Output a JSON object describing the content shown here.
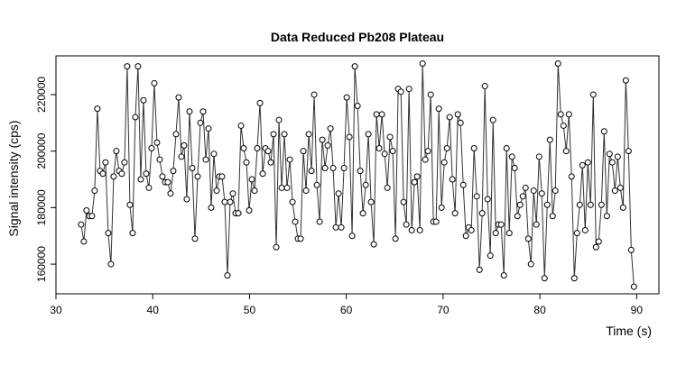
{
  "chart_data": {
    "type": "line",
    "title": "Data Reduced Pb208 Plateau",
    "x_label": "Time (s)",
    "y_label": "Signal intensity (cps)",
    "color": "#000000",
    "markers": true,
    "xlim": [
      30,
      92.3
    ],
    "ylim": [
      149500,
      233700
    ],
    "xticks": [
      30,
      40,
      50,
      60,
      70,
      80,
      90
    ],
    "yticks": [
      160000,
      180000,
      200000,
      220000
    ],
    "x": [
      32.6,
      32.88,
      33.16,
      33.44,
      33.72,
      34,
      34.28,
      34.56,
      34.84,
      35.12,
      35.4,
      35.68,
      35.96,
      36.24,
      36.52,
      36.8,
      37.08,
      37.36,
      37.64,
      37.92,
      38.2,
      38.48,
      38.76,
      39.04,
      39.32,
      39.6,
      39.88,
      40.16,
      40.44,
      40.72,
      41,
      41.28,
      41.56,
      41.84,
      42.12,
      42.4,
      42.68,
      42.96,
      43.24,
      43.52,
      43.8,
      44.08,
      44.36,
      44.64,
      44.92,
      45.2,
      45.48,
      45.76,
      46.04,
      46.32,
      46.6,
      46.88,
      47.16,
      47.44,
      47.72,
      48,
      48.28,
      48.56,
      48.84,
      49.12,
      49.4,
      49.68,
      49.96,
      50.24,
      50.52,
      50.8,
      51.08,
      51.36,
      51.64,
      51.92,
      52.2,
      52.48,
      52.76,
      53.04,
      53.32,
      53.6,
      53.88,
      54.16,
      54.44,
      54.72,
      55,
      55.28,
      55.56,
      55.84,
      56.12,
      56.4,
      56.68,
      56.96,
      57.24,
      57.52,
      57.8,
      58.08,
      58.36,
      58.64,
      58.92,
      59.2,
      59.48,
      59.76,
      60.04,
      60.32,
      60.6,
      60.88,
      61.16,
      61.44,
      61.72,
      62,
      62.28,
      62.56,
      62.84,
      63.12,
      63.4,
      63.68,
      63.96,
      64.24,
      64.52,
      64.8,
      65.08,
      65.36,
      65.64,
      65.92,
      66.2,
      66.48,
      66.76,
      67.04,
      67.32,
      67.6,
      67.88,
      68.16,
      68.44,
      68.72,
      69,
      69.28,
      69.56,
      69.84,
      70.12,
      70.4,
      70.68,
      70.96,
      71.24,
      71.52,
      71.8,
      72.08,
      72.36,
      72.64,
      72.92,
      73.2,
      73.48,
      73.76,
      74.04,
      74.32,
      74.6,
      74.88,
      75.16,
      75.44,
      75.72,
      76,
      76.28,
      76.56,
      76.84,
      77.12,
      77.4,
      77.68,
      77.96,
      78.24,
      78.52,
      78.8,
      79.08,
      79.36,
      79.64,
      79.92,
      80.2,
      80.48,
      80.76,
      81.04,
      81.32,
      81.6,
      81.88,
      82.16,
      82.44,
      82.72,
      83,
      83.28,
      83.56,
      83.84,
      84.12,
      84.4,
      84.68,
      84.96,
      85.24,
      85.52,
      85.8,
      86.08,
      86.36,
      86.64,
      86.92,
      87.2,
      87.48,
      87.76,
      88.04,
      88.32,
      88.6,
      88.88,
      89.16,
      89.44,
      89.72
    ],
    "values": [
      174000,
      168000,
      179000,
      177000,
      177000,
      186000,
      215000,
      193000,
      192000,
      196000,
      171000,
      160000,
      191000,
      200000,
      193000,
      192000,
      196000,
      230000,
      181000,
      171000,
      212000,
      230000,
      190000,
      218000,
      192000,
      187000,
      201000,
      224000,
      203000,
      197000,
      191000,
      189000,
      189000,
      185000,
      193000,
      206000,
      219000,
      198000,
      202000,
      183000,
      214000,
      194000,
      169000,
      191000,
      210000,
      214000,
      197000,
      208000,
      180000,
      199000,
      186000,
      191000,
      191000,
      182000,
      156000,
      182000,
      185000,
      178000,
      178000,
      209000,
      201000,
      196000,
      179000,
      190000,
      186000,
      201000,
      217000,
      192000,
      201000,
      200000,
      196000,
      206000,
      166000,
      211000,
      187000,
      206000,
      187000,
      197000,
      182000,
      175000,
      169000,
      169000,
      200000,
      186000,
      206000,
      193000,
      220000,
      188000,
      175000,
      204000,
      194000,
      202000,
      208000,
      194000,
      173000,
      185000,
      173000,
      194000,
      219000,
      205000,
      170000,
      230000,
      216000,
      193000,
      178000,
      188000,
      206000,
      182000,
      167000,
      213000,
      201000,
      213000,
      199000,
      187000,
      205000,
      200000,
      169000,
      222000,
      221000,
      182000,
      174000,
      222000,
      172000,
      189000,
      191000,
      172000,
      231000,
      197000,
      200000,
      220000,
      175000,
      175000,
      215000,
      180000,
      196000,
      201000,
      212000,
      190000,
      178000,
      213000,
      210000,
      188000,
      170000,
      173000,
      172000,
      201000,
      184000,
      158000,
      178000,
      223000,
      183000,
      163000,
      211000,
      171000,
      174000,
      174000,
      156000,
      201000,
      171000,
      198000,
      194000,
      177000,
      181000,
      184000,
      187000,
      169000,
      160000,
      186000,
      174000,
      198000,
      185000,
      155000,
      181000,
      204000,
      177000,
      186000,
      231000,
      213000,
      209000,
      200000,
      213000,
      191000,
      155000,
      171000,
      181000,
      195000,
      172000,
      196000,
      181000,
      220000,
      166000,
      168000,
      181000,
      207000,
      177000,
      199000,
      196000,
      186000,
      198000,
      187000,
      180000,
      225000,
      200000,
      165000,
      152000
    ]
  }
}
